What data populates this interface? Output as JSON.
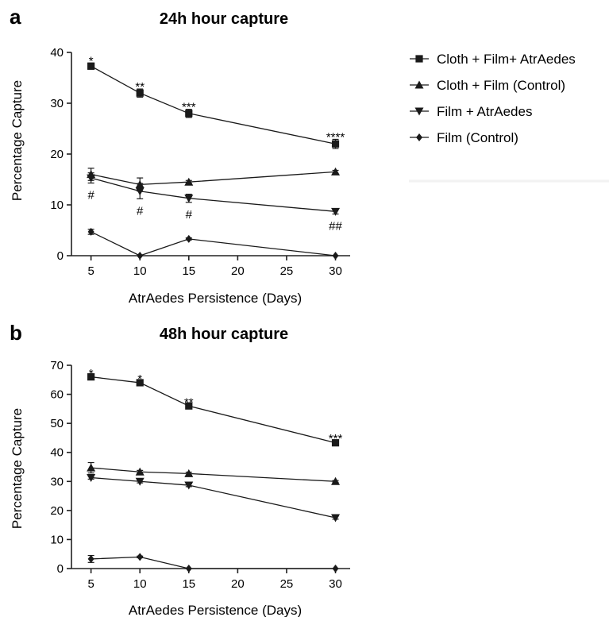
{
  "chart_data": [
    {
      "type": "line",
      "panel_label": "a",
      "title": "24h hour capture",
      "xlabel": "AtrAedes Persistence (Days)",
      "ylabel": "Percentage Capture",
      "x": [
        5,
        10,
        15,
        30
      ],
      "xticks": [
        5,
        10,
        15,
        20,
        25,
        30
      ],
      "xlim": [
        3,
        31.5
      ],
      "ylim": [
        0,
        40
      ],
      "yticks": [
        0,
        10,
        20,
        30,
        40
      ],
      "grid": false,
      "legend_position": "right",
      "series": [
        {
          "name": "Cloth + Film+ AtrAedes",
          "marker": "square",
          "values": [
            37.3,
            32.0,
            28.0,
            22.0
          ],
          "errors": [
            0.6,
            0.8,
            0.8,
            0.9
          ],
          "annotations": [
            "*",
            "**",
            "***",
            "****"
          ],
          "annotation_position": "above"
        },
        {
          "name": "Cloth + Film (Control)",
          "marker": "triangle-up",
          "values": [
            16.0,
            14.0,
            14.5,
            16.5
          ],
          "errors": [
            1.2,
            1.3,
            0.3,
            0.3
          ],
          "annotations": [],
          "annotation_position": "above"
        },
        {
          "name": "Film + AtrAedes",
          "marker": "triangle-down",
          "values": [
            15.3,
            12.7,
            11.3,
            8.7
          ],
          "errors": [
            1.0,
            1.5,
            0.8,
            0.5
          ],
          "annotations": [
            "#",
            "#",
            "#",
            "##"
          ],
          "annotation_position": "below"
        },
        {
          "name": "Film (Control)",
          "marker": "diamond",
          "values": [
            4.7,
            0.0,
            3.3,
            0.0
          ],
          "errors": [
            0.5,
            0.0,
            0.2,
            0.0
          ],
          "annotations": [],
          "annotation_position": "above"
        }
      ]
    },
    {
      "type": "line",
      "panel_label": "b",
      "title": "48h hour capture",
      "xlabel": "AtrAedes Persistence (Days)",
      "ylabel": "Percentage Capture",
      "x": [
        5,
        10,
        15,
        30
      ],
      "xticks": [
        5,
        10,
        15,
        20,
        25,
        30
      ],
      "xlim": [
        3,
        31.5
      ],
      "ylim": [
        0,
        70
      ],
      "yticks": [
        0,
        10,
        20,
        30,
        40,
        50,
        60,
        70
      ],
      "grid": false,
      "legend_position": "none",
      "series": [
        {
          "name": "Cloth + Film+ AtrAedes",
          "marker": "square",
          "values": [
            66.0,
            64.0,
            56.0,
            43.3
          ],
          "errors": [
            0.5,
            0.5,
            0.5,
            0.7
          ],
          "annotations": [
            "*",
            "*",
            "**",
            "***"
          ],
          "annotation_position": "above"
        },
        {
          "name": "Cloth + Film (Control)",
          "marker": "triangle-up",
          "values": [
            34.7,
            33.3,
            32.7,
            30.0
          ],
          "errors": [
            1.8,
            0.5,
            0.5,
            0.3
          ],
          "annotations": [],
          "annotation_position": "above"
        },
        {
          "name": "Film + AtrAedes",
          "marker": "triangle-down",
          "values": [
            31.3,
            30.0,
            28.7,
            17.5
          ],
          "errors": [
            0.5,
            0.5,
            0.5,
            0.5
          ],
          "annotations": [],
          "annotation_position": "above"
        },
        {
          "name": "Film (Control)",
          "marker": "diamond",
          "values": [
            3.3,
            4.0,
            0.0,
            0.0
          ],
          "errors": [
            1.2,
            0.3,
            0.0,
            0.0
          ],
          "annotations": [],
          "annotation_position": "above"
        }
      ]
    }
  ]
}
